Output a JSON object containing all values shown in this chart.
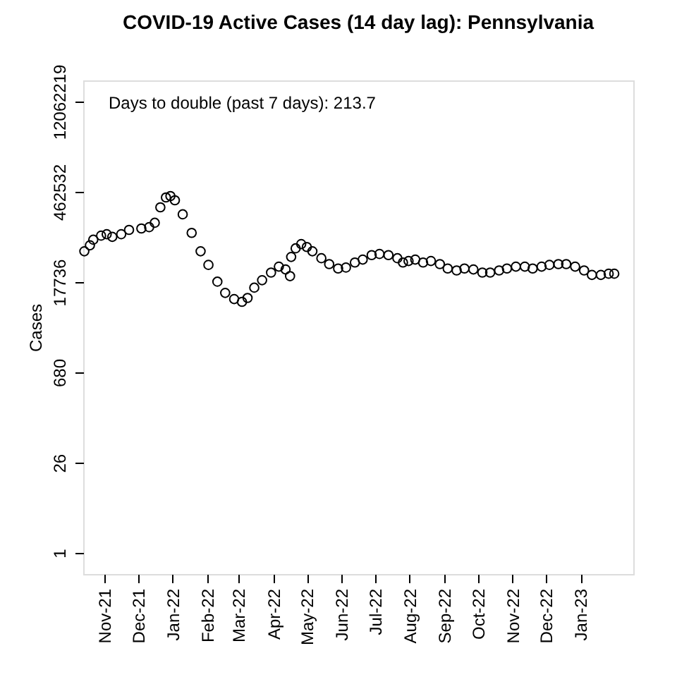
{
  "chart_data": {
    "type": "scatter",
    "title": "COVID-19 Active Cases (14 day lag): Pennsylvania",
    "ylabel": "Cases",
    "annotations": [
      "Days to double (past 7 days): 213.7"
    ],
    "x": [
      "2021-10-14",
      "2021-10-19",
      "2021-10-22",
      "2021-10-29",
      "2021-11-03",
      "2021-11-08",
      "2021-11-16",
      "2021-11-23",
      "2021-12-04",
      "2021-12-11",
      "2021-12-16",
      "2021-12-21",
      "2021-12-26",
      "2021-12-30",
      "2022-01-03",
      "2022-01-10",
      "2022-01-18",
      "2022-01-26",
      "2022-02-02",
      "2022-02-10",
      "2022-02-17",
      "2022-02-25",
      "2022-03-04",
      "2022-03-09",
      "2022-03-15",
      "2022-03-22",
      "2022-03-30",
      "2022-04-06",
      "2022-04-12",
      "2022-04-16",
      "2022-04-17",
      "2022-04-21",
      "2022-04-26",
      "2022-05-01",
      "2022-05-06",
      "2022-05-14",
      "2022-05-21",
      "2022-05-29",
      "2022-06-05",
      "2022-06-13",
      "2022-06-20",
      "2022-06-28",
      "2022-07-05",
      "2022-07-13",
      "2022-07-21",
      "2022-07-26",
      "2022-07-31",
      "2022-08-06",
      "2022-08-13",
      "2022-08-20",
      "2022-08-28",
      "2022-09-04",
      "2022-09-12",
      "2022-09-19",
      "2022-09-27",
      "2022-10-05",
      "2022-10-12",
      "2022-10-20",
      "2022-10-27",
      "2022-11-04",
      "2022-11-12",
      "2022-11-19",
      "2022-11-27",
      "2022-12-04",
      "2022-12-12",
      "2022-12-19",
      "2022-12-27",
      "2023-01-04",
      "2023-01-11",
      "2023-01-19",
      "2023-01-26",
      "2023-01-31"
    ],
    "series": [
      {
        "color": "#000000",
        "values": [
          54000,
          67000,
          82000,
          95000,
          100000,
          91000,
          100000,
          117000,
          123000,
          129000,
          151000,
          264000,
          377000,
          397000,
          341000,
          205000,
          105000,
          54000,
          33000,
          18000,
          12000,
          9600,
          8700,
          10000,
          14500,
          19000,
          25000,
          31000,
          28000,
          22000,
          44000,
          60000,
          70000,
          63000,
          54000,
          42000,
          34000,
          29000,
          30000,
          36000,
          40000,
          47000,
          49000,
          47000,
          42000,
          36000,
          38000,
          40000,
          36000,
          38000,
          34000,
          29000,
          27000,
          29000,
          28000,
          25000,
          25000,
          27000,
          29000,
          31000,
          31000,
          29000,
          31000,
          33000,
          34000,
          34000,
          31000,
          27000,
          23000,
          23000,
          24000,
          24000
        ]
      }
    ],
    "marker": "circle",
    "log": "y",
    "grid": false,
    "xlim": [
      "2021-10-13",
      "2023-02-17"
    ],
    "ylim": [
      0.466,
      25900000
    ],
    "xticks": [
      {
        "value": "2021-11-01",
        "label": "Nov-21"
      },
      {
        "value": "2021-12-01",
        "label": "Dec-21"
      },
      {
        "value": "2022-01-01",
        "label": "Jan-22"
      },
      {
        "value": "2022-02-01",
        "label": "Feb-22"
      },
      {
        "value": "2022-03-01",
        "label": "Mar-22"
      },
      {
        "value": "2022-04-01",
        "label": "Apr-22"
      },
      {
        "value": "2022-05-01",
        "label": "May-22"
      },
      {
        "value": "2022-06-01",
        "label": "Jun-22"
      },
      {
        "value": "2022-07-01",
        "label": "Jul-22"
      },
      {
        "value": "2022-08-01",
        "label": "Aug-22"
      },
      {
        "value": "2022-09-01",
        "label": "Sep-22"
      },
      {
        "value": "2022-10-01",
        "label": "Oct-22"
      },
      {
        "value": "2022-11-01",
        "label": "Nov-22"
      },
      {
        "value": "2022-12-01",
        "label": "Dec-22"
      },
      {
        "value": "2023-01-01",
        "label": "Jan-23"
      }
    ],
    "yticks": [
      1,
      26,
      680,
      17736,
      462532,
      12062219
    ]
  }
}
